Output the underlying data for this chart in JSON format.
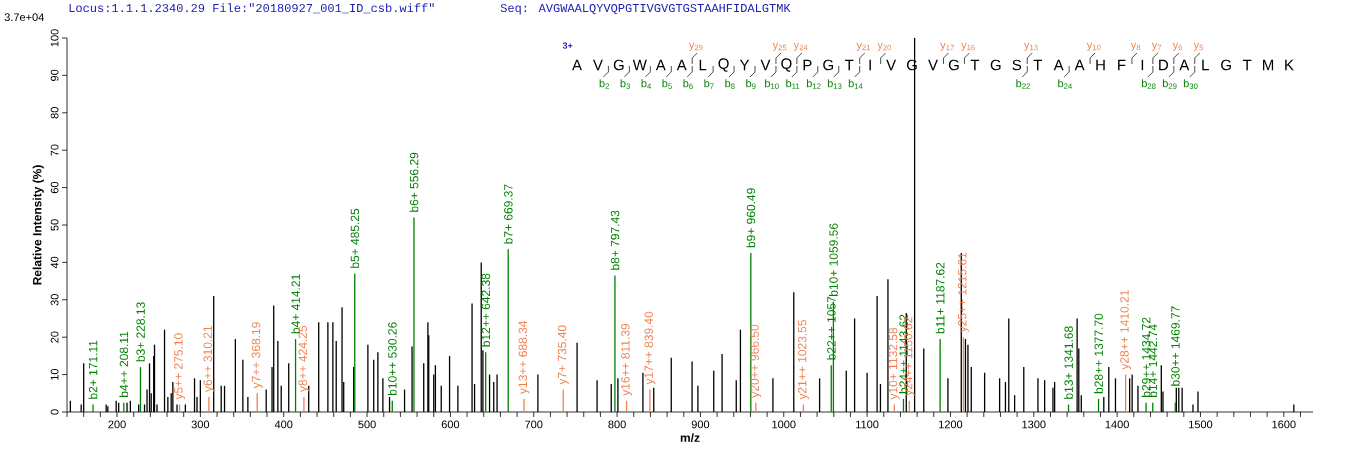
{
  "chart_data": [
    {
      "type": "bar",
      "title": "Locus:1.1.1.2340.29 File:\"20180927_001_ID_csb.wiff\"",
      "subtitle": "Seq: AVGWAALQYVQPGTIVGVGTGSTAAHFIDALGTMK",
      "xlabel": "m/z",
      "ylabel": "Relative   Intensity (%)",
      "xlim": [
        140,
        1635
      ],
      "ylim": [
        0,
        100
      ],
      "xticks": [
        {
          "value": 140,
          "label": null
        },
        {
          "value": 160,
          "label": null
        },
        {
          "value": 180,
          "label": null
        },
        200,
        {
          "value": 220,
          "label": null
        },
        {
          "value": 240,
          "label": null
        },
        {
          "value": 260,
          "label": null
        },
        {
          "value": 280,
          "label": null
        },
        300,
        {
          "value": 320,
          "label": null
        },
        {
          "value": 340,
          "label": null
        },
        {
          "value": 360,
          "label": null
        },
        {
          "value": 380,
          "label": null
        },
        400,
        {
          "value": 420,
          "label": null
        },
        {
          "value": 440,
          "label": null
        },
        {
          "value": 460,
          "label": null
        },
        {
          "value": 480,
          "label": null
        },
        500,
        {
          "value": 520,
          "label": null
        },
        {
          "value": 540,
          "label": null
        },
        {
          "value": 560,
          "label": null
        },
        {
          "value": 580,
          "label": null
        },
        600,
        {
          "value": 620,
          "label": null
        },
        {
          "value": 640,
          "label": null
        },
        {
          "value": 660,
          "label": null
        },
        {
          "value": 680,
          "label": null
        },
        700,
        {
          "value": 720,
          "label": null
        },
        {
          "value": 740,
          "label": null
        },
        {
          "value": 760,
          "label": null
        },
        {
          "value": 780,
          "label": null
        },
        800,
        {
          "value": 820,
          "label": null
        },
        {
          "value": 840,
          "label": null
        },
        {
          "value": 860,
          "label": null
        },
        {
          "value": 880,
          "label": null
        },
        900,
        {
          "value": 920,
          "label": null
        },
        {
          "value": 940,
          "label": null
        },
        {
          "value": 960,
          "label": null
        },
        {
          "value": 980,
          "label": null
        },
        1000,
        {
          "value": 1020,
          "label": null
        },
        {
          "value": 1040,
          "label": null
        },
        {
          "value": 1060,
          "label": null
        },
        {
          "value": 1080,
          "label": null
        },
        1100,
        {
          "value": 1120,
          "label": null
        },
        {
          "value": 1140,
          "label": null
        },
        {
          "value": 1160,
          "label": null
        },
        {
          "value": 1180,
          "label": null
        },
        1200,
        {
          "value": 1220,
          "label": null
        },
        {
          "value": 1240,
          "label": null
        },
        {
          "value": 1260,
          "label": null
        },
        {
          "value": 1280,
          "label": null
        },
        1300,
        {
          "value": 1320,
          "label": null
        },
        {
          "value": 1340,
          "label": null
        },
        {
          "value": 1360,
          "label": null
        },
        {
          "value": 1380,
          "label": null
        },
        1400,
        {
          "value": 1420,
          "label": null
        },
        {
          "value": 1440,
          "label": null
        },
        {
          "value": 1460,
          "label": null
        },
        {
          "value": 1480,
          "label": null
        },
        1500,
        {
          "value": 1520,
          "label": null
        },
        {
          "value": 1540,
          "label": null
        },
        {
          "value": 1560,
          "label": null
        },
        {
          "value": 1580,
          "label": null
        },
        1600,
        {
          "value": 1620,
          "label": null
        }
      ],
      "yticks": [
        0,
        10,
        20,
        30,
        40,
        50,
        60,
        70,
        80,
        90,
        100
      ],
      "series": [
        {
          "color": "#000000",
          "x": [
            144,
            157,
            160,
            187,
            189,
            199,
            202,
            212,
            216,
            226,
            233,
            236,
            239,
            241,
            244,
            245,
            248,
            257,
            261,
            265,
            267,
            272,
            282,
            293,
            296,
            300,
            316,
            325,
            329,
            342,
            351,
            357,
            379,
            386,
            388,
            393,
            397,
            406,
            430,
            442,
            453,
            459,
            463,
            470,
            472,
            484,
            501,
            508,
            513,
            519,
            527,
            545,
            554,
            568,
            573,
            574,
            580,
            582,
            589,
            599,
            609,
            626,
            629,
            637,
            639,
            647,
            652,
            656,
            705,
            752,
            776,
            793,
            801,
            831,
            844,
            865,
            890,
            897,
            916,
            926,
            943,
            948,
            987,
            1012,
            1043,
            1075,
            1085,
            1100,
            1112,
            1116,
            1125,
            1147,
            1157,
            1168,
            1197,
            1213,
            1218,
            1221,
            1225,
            1241,
            1259,
            1266,
            1270,
            1277,
            1288,
            1305,
            1313,
            1323,
            1325,
            1352,
            1354,
            1357,
            1384,
            1390,
            1398,
            1415,
            1418,
            1425,
            1453,
            1455,
            1471,
            1474,
            1478,
            1491,
            1497,
            1612
          ],
          "values": [
            3,
            2,
            13,
            2,
            1.5,
            3,
            2.5,
            2.5,
            3,
            2,
            2,
            6,
            13,
            5,
            15,
            18,
            2,
            22,
            4,
            5,
            8,
            2,
            2,
            9,
            4,
            8.5,
            31,
            7,
            7,
            19.5,
            14,
            4,
            6,
            12,
            28.5,
            19,
            7,
            13,
            7,
            24,
            24,
            24,
            19,
            28,
            8,
            12,
            18,
            14,
            16,
            9,
            4,
            6,
            17.5,
            13,
            24,
            20.5,
            10,
            12.5,
            7,
            15,
            7,
            29,
            7.5,
            40,
            16.5,
            10,
            8,
            10,
            10,
            18.5,
            8.5,
            7.5,
            9,
            10.5,
            6.5,
            14.5,
            13.5,
            7,
            11,
            15.5,
            8.5,
            22,
            9,
            32,
            9,
            11,
            25,
            10.5,
            31,
            7.5,
            35.5,
            26.5,
            100,
            17,
            9,
            42.5,
            19.5,
            18,
            12,
            10.5,
            9,
            8,
            25,
            4.5,
            12,
            9,
            8.5,
            6.5,
            8,
            25,
            17,
            4.5,
            4,
            12,
            9,
            9,
            10,
            7,
            12.5,
            5.5,
            6.5,
            6.5,
            6.5,
            2,
            5.5,
            2
          ]
        },
        {
          "color": "#008000",
          "x": [
            171.11,
            208.11,
            228.13,
            414.21,
            485.25,
            530.26,
            556.29,
            642.38,
            669.37,
            797.43,
            960.49,
            1057,
            1059.56,
            1143.62,
            1187.62,
            1341.68,
            1377.7,
            1434.72,
            1442.74,
            1469.77
          ],
          "values": [
            2,
            2.5,
            12,
            19.5,
            37,
            3,
            52,
            16,
            43.5,
            36.5,
            42.5,
            12.5,
            29.5,
            3.5,
            19.5,
            2,
            3.5,
            2.5,
            2.5,
            2.5
          ]
        },
        {
          "color": "#f08050",
          "x": [
            275.1,
            310.21,
            368.19,
            424.25,
            688.34,
            735.4,
            811.39,
            839.4,
            966.5,
            1023.55,
            1132.58,
            1150.62,
            1215.61,
            1410.21
          ],
          "values": [
            2,
            4,
            5,
            4,
            3.5,
            6,
            3,
            6,
            2.5,
            2,
            2,
            3,
            20,
            10
          ]
        }
      ],
      "annotations": [
        "3.7e+04",
        {
          "text": "b2+ 171.11",
          "x": 171.11,
          "y": 3
        },
        {
          "text": "b4++ 208.11",
          "x": 208.11,
          "y": 3.5
        },
        {
          "text": "b3+ 228.13",
          "x": 228.13,
          "y": 13
        },
        {
          "text": "y5++ 275.10",
          "x": 275.1,
          "y": 3
        },
        {
          "text": "y6++ 310.21",
          "x": 310.21,
          "y": 5
        },
        {
          "text": "y7++ 368.19",
          "x": 368.19,
          "y": 6
        },
        {
          "text": "b4+ 414.21",
          "x": 414.21,
          "y": 20.5
        },
        {
          "text": "y8++ 424.25",
          "x": 424.25,
          "y": 5
        },
        {
          "text": "b5+ 485.25",
          "x": 485.25,
          "y": 38
        },
        {
          "text": "b10++ 530.26",
          "x": 530.26,
          "y": 4
        },
        {
          "text": "b6+ 556.29",
          "x": 556.29,
          "y": 53
        },
        {
          "text": "b12++ 642.38",
          "x": 642.38,
          "y": 17
        },
        {
          "text": "b7+ 669.37",
          "x": 669.37,
          "y": 44.5
        },
        {
          "text": "y13++ 688.34",
          "x": 688.34,
          "y": 4.5
        },
        {
          "text": "y7+ 735.40",
          "x": 735.4,
          "y": 7
        },
        {
          "text": "b8+ 797.43",
          "x": 797.43,
          "y": 37.5
        },
        {
          "text": "y16++ 811.39",
          "x": 811.39,
          "y": 4
        },
        {
          "text": "y17++ 839.40",
          "x": 839.4,
          "y": 7
        },
        {
          "text": "b9+ 960.49",
          "x": 960.49,
          "y": 43.5
        },
        {
          "text": "y20++ 966.50",
          "x": 966.5,
          "y": 3.5
        },
        {
          "text": "y21++ 1023.55",
          "x": 1023.55,
          "y": 3
        },
        {
          "text": "b22++ 1057",
          "x": 1057,
          "y": 13.5
        },
        {
          "text": "b10+ 1059.56",
          "x": 1059.56,
          "y": 30.5
        },
        {
          "text": "y10+ 1132.58",
          "x": 1132.58,
          "y": 3
        },
        {
          "text": "b24++ 1143.62",
          "x": 1143.62,
          "y": 4.5
        },
        {
          "text": "y24++ 1150.62",
          "x": 1150.62,
          "y": 4
        },
        {
          "text": "b11+ 1187.62",
          "x": 1187.62,
          "y": 20.5
        },
        {
          "text": "y25++ 1215.61",
          "x": 1215.61,
          "y": 21
        },
        {
          "text": "b13+ 1341.68",
          "x": 1341.68,
          "y": 3
        },
        {
          "text": "b28++ 1377.70",
          "x": 1377.7,
          "y": 4.5
        },
        {
          "text": "y28++ 1410.21",
          "x": 1410.21,
          "y": 11
        },
        {
          "text": "b29++ 1434.72",
          "x": 1434.72,
          "y": 3.5
        },
        {
          "text": "b14+ 1442.74",
          "x": 1442.74,
          "y": 3.5
        },
        {
          "text": "b30++ 1469.77",
          "x": 1469.77,
          "y": 6.5
        }
      ]
    },
    {
      "type": "other",
      "categories": [
        "A",
        "V",
        "G",
        "W",
        "A",
        "A",
        "L",
        "Q",
        "Y",
        "V",
        "Q",
        "P",
        "G",
        "T",
        "I",
        "V",
        "G",
        "V",
        "G",
        "T",
        "G",
        "S",
        "T",
        "A",
        "A",
        "H",
        "F",
        "I",
        "D",
        "A",
        "L",
        "G",
        "T",
        "M",
        "K"
      ],
      "annotations": [
        "3+"
      ],
      "series": [
        {
          "color": "#f08050",
          "values": [
            null,
            null,
            null,
            null,
            null,
            null,
            29,
            null,
            null,
            null,
            25,
            24,
            null,
            null,
            21,
            20,
            null,
            null,
            17,
            16,
            null,
            null,
            13,
            null,
            null,
            10,
            null,
            8,
            7,
            6,
            5,
            null,
            null,
            null,
            null
          ],
          "value_labels": [
            null,
            null,
            null,
            null,
            null,
            null,
            "y$_{29}$",
            null,
            null,
            null,
            "y$_{25}$",
            "y$_{24}$",
            null,
            null,
            "y$_{21}$",
            "y$_{20}$",
            null,
            null,
            "y$_{17}$",
            "y$_{16}$",
            null,
            null,
            "y$_{13}$",
            null,
            null,
            "y$_{10}$",
            null,
            "y$_{8}$",
            "y$_{7}$",
            "y$_{6}$",
            "y$_{5}$",
            null,
            null,
            null,
            null
          ]
        },
        {
          "color": "#008000",
          "values": [
            null,
            null,
            2,
            3,
            4,
            5,
            6,
            7,
            8,
            9,
            10,
            11,
            12,
            13,
            14,
            null,
            null,
            null,
            null,
            null,
            null,
            null,
            22,
            null,
            24,
            null,
            null,
            null,
            28,
            29,
            30,
            null,
            null,
            null,
            null
          ],
          "value_labels": [
            null,
            null,
            "b$_{2}$",
            "b$_{3}$",
            "b$_{4}$",
            "b$_{5}$",
            "b$_{6}$",
            "b$_{7}$",
            "b$_{8}$",
            "b$_{9}$",
            "b$_{10}$",
            "b$_{11}$",
            "b$_{12}$",
            "b$_{13}$",
            "b$_{14}$",
            null,
            null,
            null,
            null,
            null,
            null,
            null,
            "b$_{22}$",
            null,
            "b$_{24}$",
            null,
            null,
            null,
            "b$_{28}$",
            "b$_{29}$",
            "b$_{30}$",
            null,
            null,
            null,
            null
          ]
        }
      ]
    }
  ]
}
